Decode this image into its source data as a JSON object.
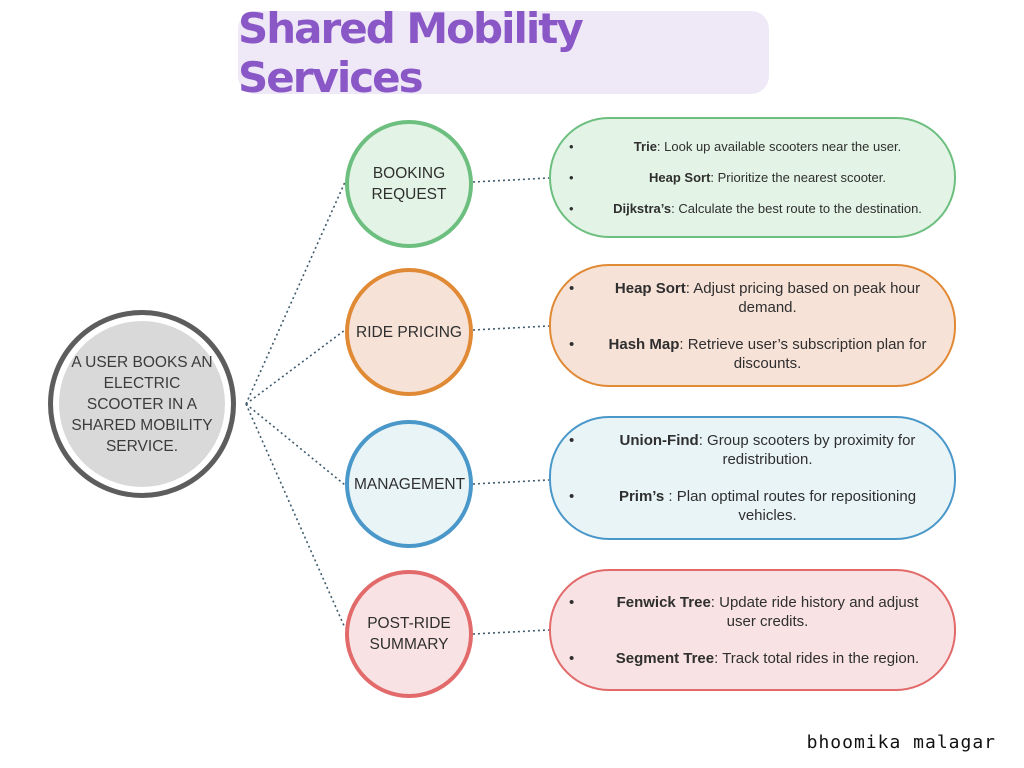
{
  "title": "Shared Mobility Services",
  "center": {
    "label": "A USER BOOKS AN ELECTRIC SCOOTER IN A SHARED MOBILITY SERVICE."
  },
  "stages": [
    {
      "label": "BOOKING REQUEST",
      "color": "#6dbf7f",
      "fill": "#e3f4e6",
      "items": [
        {
          "term": "Trie",
          "text": ": Look up available scooters near the user."
        },
        {
          "term": "Heap Sort",
          "text": ": Prioritize the nearest scooter."
        },
        {
          "term": "Dijkstra’s",
          "text": ": Calculate the best route to the destination."
        }
      ]
    },
    {
      "label": "RIDE PRICING",
      "color": "#e08a35",
      "fill": "#f7e2d8",
      "items": [
        {
          "term": "Heap Sort",
          "text": ": Adjust pricing based on peak hour demand."
        },
        {
          "term": "Hash Map",
          "text": ": Retrieve user’s subscription plan for discounts."
        }
      ]
    },
    {
      "label": "MANAGEMENT",
      "color": "#4a97c9",
      "fill": "#e9f4f7",
      "items": [
        {
          "term": "Union-Find",
          "text": ": Group scooters by proximity for redistribution."
        },
        {
          "term": "Prim’s",
          "text": " : Plan optimal routes for repositioning vehicles."
        }
      ]
    },
    {
      "label": "POST-RIDE SUMMARY",
      "color": "#e26a6a",
      "fill": "#f8e2e4",
      "items": [
        {
          "term": "Fenwick Tree",
          "text": ": Update ride history and adjust user credits."
        },
        {
          "term": "Segment Tree",
          "text": ": Track total rides in the region."
        }
      ]
    }
  ],
  "author": "bhoomika malagar"
}
